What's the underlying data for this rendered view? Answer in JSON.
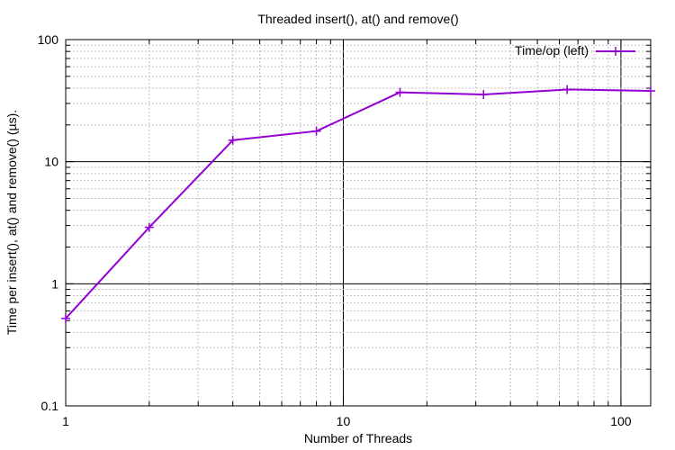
{
  "chart_data": {
    "type": "line",
    "title": "Threaded insert(), at() and remove()",
    "xlabel": "Number of Threads",
    "ylabel": "Time per insert(), at() and remove() (µs).",
    "x_scale": "log",
    "y_scale": "log",
    "xlim": [
      1,
      128
    ],
    "ylim": [
      0.1,
      100
    ],
    "x_ticks": [
      1,
      10,
      100
    ],
    "x_tick_labels": [
      "1",
      "10",
      "100"
    ],
    "y_ticks": [
      0.1,
      1,
      10,
      100
    ],
    "y_tick_labels": [
      "0.1",
      "1",
      "10",
      "100"
    ],
    "grid": true,
    "legend_position": "top-right",
    "series": [
      {
        "name": "Time/op (left)",
        "color": "#9400d3",
        "marker": "plus",
        "x": [
          1,
          2,
          4,
          8,
          16,
          32,
          64,
          128
        ],
        "y": [
          0.52,
          2.9,
          15,
          17.8,
          37,
          35.5,
          39,
          38
        ]
      }
    ]
  }
}
